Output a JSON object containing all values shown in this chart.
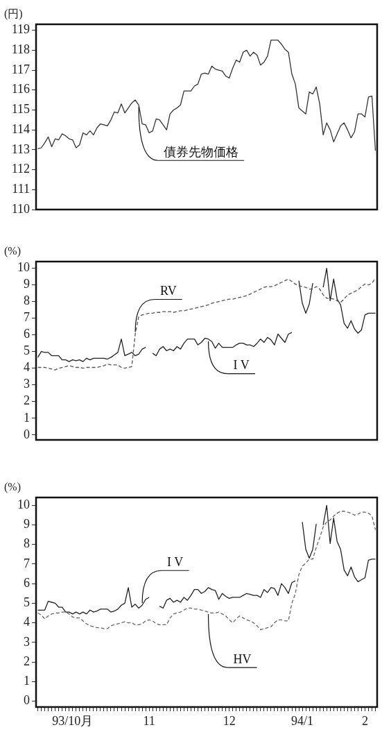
{
  "chart_data": [
    {
      "type": "line",
      "ylabel": "(円)",
      "ylim": [
        110,
        119.3
      ],
      "yticks": [
        110,
        111,
        112,
        113,
        114,
        115,
        116,
        117,
        118,
        119
      ],
      "tick_labels": "y",
      "grid": false,
      "legend": false,
      "marker": "none",
      "series": [
        {
          "name": "債券先物価格",
          "color": "#333333",
          "line_style": "solid",
          "values": [
            113.05,
            113.1,
            113.35,
            113.65,
            113.15,
            113.55,
            113.5,
            113.8,
            113.7,
            113.55,
            113.5,
            113.1,
            113.25,
            113.85,
            113.75,
            113.95,
            113.75,
            114.1,
            114.3,
            114.25,
            114.2,
            114.5,
            114.9,
            114.85,
            115.3,
            114.85,
            115.1,
            115.35,
            115.5,
            115.25,
            114.3,
            114.25,
            113.85,
            113.95,
            114.55,
            114.5,
            114.25,
            114.0,
            114.8,
            115.0,
            115.1,
            115.25,
            115.95,
            115.95,
            115.95,
            116.2,
            116.3,
            116.8,
            116.85,
            116.8,
            117.2,
            117.05,
            117.0,
            116.95,
            116.7,
            116.6,
            117.1,
            117.5,
            117.4,
            117.9,
            118.0,
            117.7,
            117.9,
            117.75,
            117.25,
            117.4,
            117.7,
            118.5,
            118.5,
            118.5,
            118.3,
            118.05,
            117.9,
            116.8,
            116.3,
            115.1,
            114.95,
            114.8,
            115.9,
            115.8,
            116.15,
            115.3,
            113.75,
            114.35,
            114.0,
            113.4,
            113.8,
            114.2,
            114.35,
            114.0,
            113.6,
            113.9,
            114.8,
            114.8,
            114.65,
            115.65,
            115.7,
            112.95
          ]
        }
      ]
    },
    {
      "type": "line",
      "ylabel": "(%)",
      "ylim": [
        -0.3,
        10.4
      ],
      "yticks": [
        0,
        1,
        2,
        3,
        4,
        5,
        6,
        7,
        8,
        9,
        10
      ],
      "tick_labels": "y",
      "grid": false,
      "legend": false,
      "marker": "none",
      "series": [
        {
          "name": "RV",
          "color": "#555555",
          "line_style": "dashed",
          "values": [
            4.05,
            4.05,
            4.05,
            4.0,
            3.95,
            3.9,
            4.0,
            4.05,
            4.1,
            4.15,
            4.1,
            4.05,
            4.05,
            4.0,
            4.05,
            4.05,
            4.05,
            4.05,
            4.1,
            4.15,
            4.25,
            4.2,
            4.2,
            4.2,
            4.05,
            4.0,
            4.05,
            4.1,
            6.05,
            7.1,
            7.2,
            7.25,
            7.3,
            7.3,
            7.35,
            7.35,
            7.4,
            7.4,
            7.4,
            7.35,
            7.4,
            7.45,
            7.45,
            7.5,
            7.55,
            7.6,
            7.65,
            7.7,
            7.75,
            7.8,
            7.9,
            7.95,
            8.0,
            8.05,
            8.1,
            8.15,
            8.15,
            8.2,
            8.25,
            8.3,
            8.35,
            8.45,
            8.55,
            8.65,
            8.75,
            8.85,
            8.9,
            8.9,
            8.95,
            9.05,
            9.15,
            9.25,
            9.35,
            9.2,
            9.05,
            8.95,
            8.9,
            8.85,
            8.75,
            8.75,
            8.9,
            8.75,
            8.4,
            8.2,
            8.2,
            8.15,
            8.05,
            7.95,
            8.15,
            8.4,
            8.5,
            8.6,
            8.7,
            8.9,
            9.05,
            9.0,
            9.1,
            9.4
          ]
        },
        {
          "name": "I V",
          "color": "#222222",
          "line_style": "solid",
          "values": [
            4.65,
            5.0,
            4.95,
            4.95,
            4.75,
            4.75,
            4.75,
            4.5,
            4.5,
            4.4,
            4.5,
            4.45,
            4.5,
            4.4,
            4.6,
            4.5,
            4.6,
            4.6,
            4.6,
            4.6,
            4.55,
            4.65,
            4.8,
            4.95,
            5.75,
            4.75,
            4.85,
            4.95,
            4.75,
            4.85,
            5.15,
            5.25,
            null,
            4.9,
            4.75,
            5.15,
            5.3,
            5.05,
            5.15,
            5.05,
            5.3,
            5.15,
            5.5,
            5.75,
            5.75,
            5.75,
            5.4,
            5.55,
            5.8,
            5.75,
            5.6,
            5.2,
            5.5,
            5.25,
            5.25,
            5.25,
            5.25,
            5.4,
            5.5,
            5.5,
            5.4,
            5.4,
            5.3,
            5.5,
            5.75,
            5.55,
            5.85,
            5.7,
            5.4,
            6.05,
            5.8,
            5.55,
            6.05,
            6.15,
            null,
            9.25,
            7.9,
            7.3,
            7.85,
            9.1,
            null,
            null,
            8.85,
            10.0,
            8.05,
            9.35,
            8.15,
            7.8,
            6.7,
            6.4,
            6.85,
            6.35,
            6.1,
            6.3,
            7.2,
            7.3,
            7.3,
            7.3
          ]
        }
      ]
    },
    {
      "type": "line",
      "ylabel": "(%)",
      "ylim": [
        -0.3,
        10.4
      ],
      "yticks": [
        0,
        1,
        2,
        3,
        4,
        5,
        6,
        7,
        8,
        9,
        10
      ],
      "grid": false,
      "legend": false,
      "marker": "none",
      "categories": [
        null,
        null,
        null,
        null,
        null,
        null,
        null,
        null,
        null,
        null,
        "93/10月",
        null,
        null,
        null,
        null,
        null,
        null,
        null,
        null,
        null,
        null,
        null,
        null,
        null,
        null,
        null,
        null,
        null,
        null,
        null,
        null,
        null,
        "11",
        null,
        null,
        null,
        null,
        null,
        null,
        null,
        null,
        null,
        null,
        null,
        null,
        null,
        null,
        null,
        null,
        null,
        null,
        null,
        null,
        null,
        null,
        "12",
        null,
        null,
        null,
        null,
        null,
        null,
        null,
        null,
        null,
        null,
        null,
        null,
        null,
        null,
        null,
        null,
        null,
        null,
        null,
        null,
        "94/1",
        null,
        null,
        null,
        null,
        null,
        null,
        null,
        null,
        null,
        null,
        null,
        null,
        null,
        null,
        null,
        null,
        null,
        "2",
        null,
        null,
        null
      ],
      "series": [
        {
          "name": "I V",
          "color": "#222222",
          "line_style": "solid",
          "values": [
            4.65,
            4.65,
            4.65,
            5.1,
            5.05,
            5.0,
            4.8,
            4.8,
            4.55,
            4.55,
            4.45,
            4.55,
            4.45,
            4.55,
            4.45,
            4.65,
            4.55,
            4.6,
            4.7,
            4.7,
            4.7,
            4.55,
            4.6,
            4.7,
            4.9,
            5.0,
            5.8,
            4.8,
            4.95,
            4.75,
            4.9,
            5.2,
            5.3,
            null,
            null,
            4.85,
            4.75,
            5.15,
            5.25,
            5.05,
            5.15,
            5.05,
            5.3,
            5.15,
            5.4,
            5.7,
            5.7,
            5.5,
            5.6,
            5.8,
            5.7,
            5.65,
            5.2,
            5.5,
            5.35,
            5.25,
            5.3,
            5.3,
            5.3,
            5.4,
            5.5,
            5.45,
            5.4,
            5.4,
            5.3,
            5.7,
            5.55,
            5.8,
            5.75,
            5.4,
            6.0,
            5.8,
            5.5,
            6.05,
            6.15,
            null,
            9.15,
            7.75,
            7.3,
            7.75,
            9.05,
            null,
            9.0,
            10.0,
            8.05,
            9.35,
            8.15,
            7.75,
            6.7,
            6.4,
            6.85,
            6.35,
            6.1,
            6.2,
            6.3,
            7.2,
            7.25,
            7.25
          ]
        },
        {
          "name": "HV",
          "color": "#666666",
          "line_style": "dashed",
          "values": [
            4.5,
            4.4,
            4.2,
            4.35,
            4.45,
            4.5,
            4.5,
            4.55,
            4.55,
            4.45,
            4.3,
            4.25,
            4.25,
            4.1,
            3.95,
            3.85,
            3.8,
            3.75,
            3.75,
            3.7,
            3.7,
            3.85,
            3.9,
            3.95,
            4.0,
            4.05,
            4.0,
            4.0,
            3.9,
            3.9,
            3.95,
            4.1,
            4.15,
            4.1,
            3.95,
            3.9,
            3.9,
            3.9,
            4.25,
            4.45,
            4.5,
            4.55,
            4.65,
            4.75,
            4.75,
            4.7,
            4.7,
            4.65,
            4.6,
            4.55,
            4.5,
            4.5,
            4.55,
            4.45,
            4.35,
            4.15,
            4.0,
            4.2,
            4.35,
            4.25,
            4.15,
            4.1,
            4.0,
            3.85,
            3.65,
            3.7,
            3.75,
            3.8,
            4.0,
            4.15,
            4.15,
            4.1,
            4.1,
            5.0,
            5.5,
            6.45,
            6.9,
            7.05,
            7.25,
            7.25,
            7.85,
            8.35,
            8.9,
            9.15,
            9.25,
            9.45,
            9.6,
            9.7,
            9.7,
            9.65,
            9.6,
            9.5,
            9.55,
            9.65,
            9.65,
            9.6,
            9.45,
            8.75
          ]
        }
      ]
    }
  ]
}
